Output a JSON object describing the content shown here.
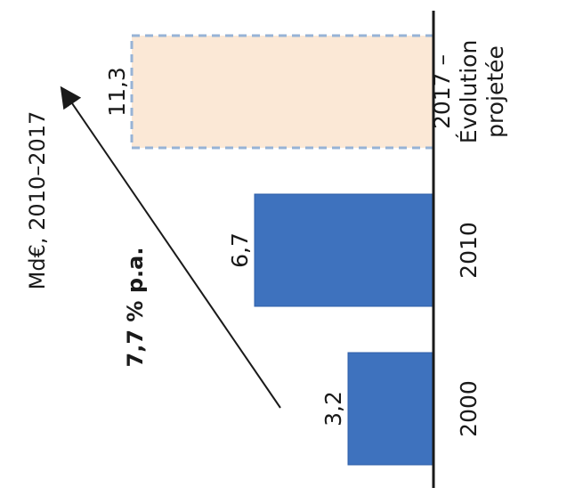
{
  "chart_data": {
    "type": "bar",
    "orientation": "rotated",
    "unit_label": "Md€, 2010–2017",
    "categories": [
      "2000",
      "2010",
      "2017 – Évolution projetée"
    ],
    "category_lines": [
      [
        "2000"
      ],
      [
        "2010"
      ],
      [
        "2017 –",
        "Évolution",
        "projetée"
      ]
    ],
    "values": [
      3.2,
      6.7,
      11.3
    ],
    "value_labels": [
      "3,2",
      "6,7",
      "11,3"
    ],
    "projected": [
      false,
      false,
      true
    ],
    "annotation": "7,7 % p.a.",
    "colors": {
      "bar": "#3e72be",
      "bar_edge": "#2f5fa8",
      "projected_fill": "#fbe8d6",
      "projected_border": "#97b3d6",
      "axis": "#1a1a1a"
    }
  }
}
